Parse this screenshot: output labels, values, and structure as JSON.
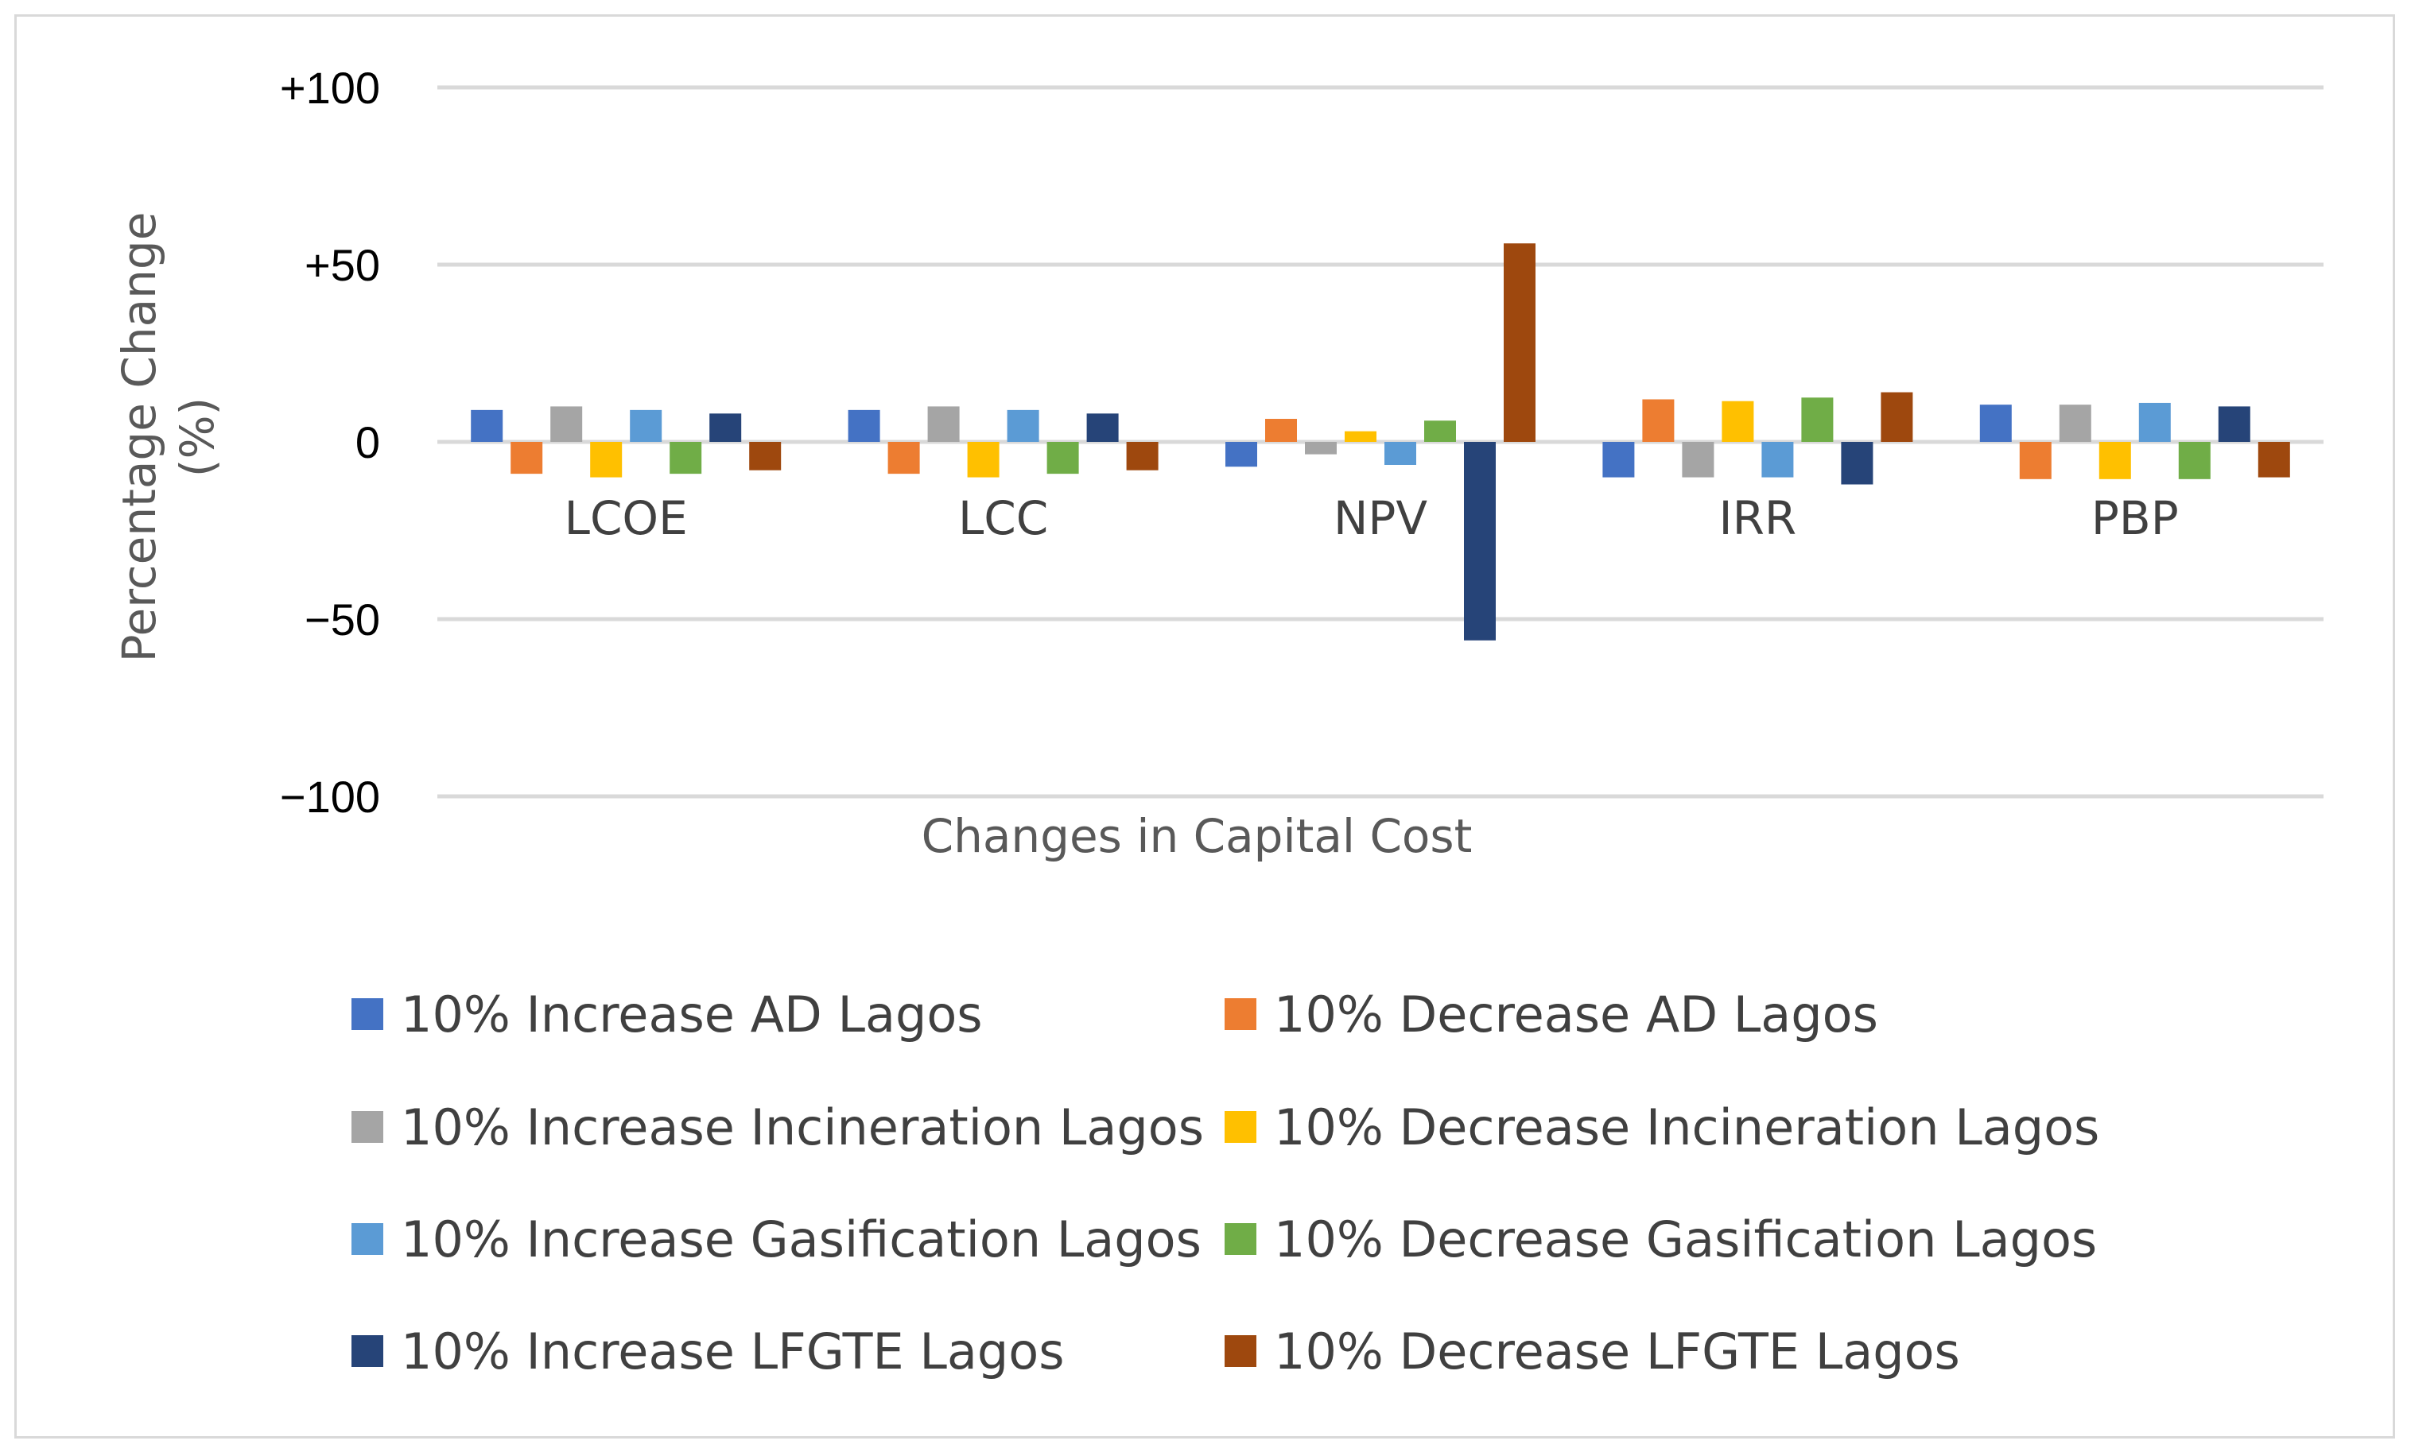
{
  "chart_data": {
    "type": "bar",
    "title": "",
    "xlabel": "Changes in Capital  Cost",
    "ylabel": "Percentage Change",
    "ylabel_unit": "(%)",
    "ylim": [
      -100,
      100
    ],
    "yticks": [
      100,
      50,
      0,
      -50,
      -100
    ],
    "ytick_labels": [
      "+100",
      "+50",
      "0",
      "−50",
      "−100"
    ],
    "grid": true,
    "legend_position": "bottom",
    "categories": [
      "LCOE",
      "LCC",
      "NPV",
      "IRR",
      "PBP"
    ],
    "series": [
      {
        "name": "10% Increase AD Lagos",
        "color": "#4472C4",
        "values": [
          9,
          9,
          -7,
          -10,
          10.5
        ]
      },
      {
        "name": "10%  Decrease AD Lagos",
        "color": "#ED7D31",
        "values": [
          -9,
          -9,
          6.5,
          12,
          -10.5
        ]
      },
      {
        "name": "10%  Increase Incineration Lagos",
        "color": "#A5A5A5",
        "values": [
          10,
          10,
          -3.5,
          -10,
          10.5
        ]
      },
      {
        "name": "10% Decrease  Incineration Lagos",
        "color": "#FFC000",
        "values": [
          -10,
          -10,
          3,
          11.5,
          -10.5
        ]
      },
      {
        "name": "10% Increase Gasification Lagos",
        "color": "#5B9BD5",
        "values": [
          9,
          9,
          -6.5,
          -10,
          11
        ]
      },
      {
        "name": "10% Decrease  Gasification Lagos",
        "color": "#70AD47",
        "values": [
          -9,
          -9,
          6,
          12.5,
          -10.5
        ]
      },
      {
        "name": "10% Increase LFGTE Lagos",
        "color": "#264478",
        "values": [
          8,
          8,
          -56,
          -12,
          10
        ]
      },
      {
        "name": "10% Decrease LFGTE Lagos",
        "color": "#9E480E",
        "values": [
          -8,
          -8,
          56,
          14,
          -10
        ]
      }
    ]
  }
}
